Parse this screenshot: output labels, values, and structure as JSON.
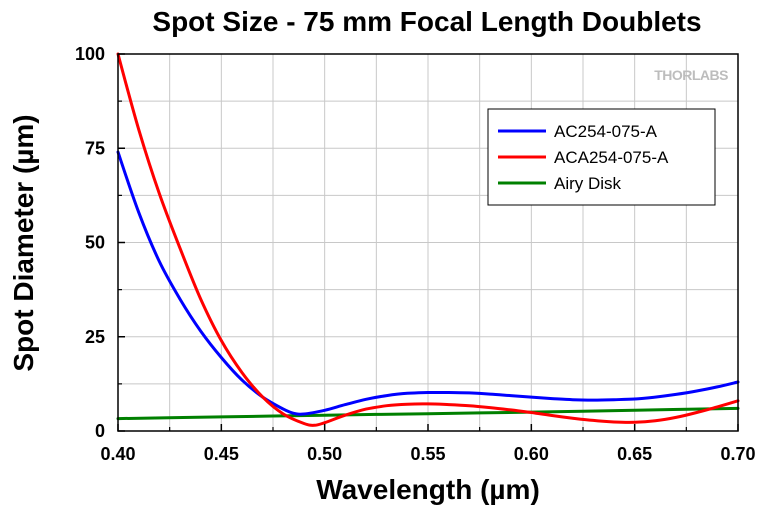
{
  "chart_data": {
    "type": "line",
    "title": "Spot Size - 75 mm Focal Length Doublets",
    "xlabel": "Wavelength (µm)",
    "ylabel": "Spot Diameter (µm)",
    "xlim": [
      0.4,
      0.7
    ],
    "ylim": [
      0,
      100
    ],
    "xticks": [
      "0.40",
      "0.45",
      "0.50",
      "0.55",
      "0.60",
      "0.65",
      "0.70"
    ],
    "yticks": [
      "0",
      "25",
      "50",
      "75",
      "100"
    ],
    "grid": true,
    "legend_position": "top-right",
    "watermark": "THORLABS",
    "series": [
      {
        "name": "AC254-075-A",
        "color": "#0000ff",
        "x": [
          0.4,
          0.41,
          0.42,
          0.43,
          0.44,
          0.45,
          0.46,
          0.47,
          0.48,
          0.485,
          0.49,
          0.5,
          0.51,
          0.52,
          0.53,
          0.54,
          0.55,
          0.56,
          0.57,
          0.58,
          0.59,
          0.6,
          0.61,
          0.62,
          0.63,
          0.64,
          0.65,
          0.66,
          0.67,
          0.68,
          0.69,
          0.7
        ],
        "y": [
          74,
          58,
          45,
          35,
          26.5,
          19.5,
          13.5,
          9,
          5.8,
          4.7,
          4.5,
          5.5,
          7,
          8.4,
          9.4,
          10,
          10.2,
          10.2,
          10.1,
          9.8,
          9.4,
          9,
          8.6,
          8.3,
          8.2,
          8.3,
          8.5,
          9,
          9.7,
          10.6,
          11.7,
          13
        ]
      },
      {
        "name": "ACA254-075-A",
        "color": "#ff0000",
        "x": [
          0.4,
          0.41,
          0.42,
          0.43,
          0.44,
          0.45,
          0.46,
          0.47,
          0.48,
          0.49,
          0.495,
          0.5,
          0.51,
          0.52,
          0.53,
          0.54,
          0.55,
          0.56,
          0.57,
          0.58,
          0.59,
          0.6,
          0.61,
          0.62,
          0.63,
          0.64,
          0.65,
          0.66,
          0.67,
          0.68,
          0.69,
          0.7
        ],
        "y": [
          100,
          80,
          63,
          48.5,
          35,
          24,
          15.5,
          9,
          4.5,
          2,
          1.5,
          2.2,
          4.2,
          5.8,
          6.7,
          7.1,
          7.2,
          7,
          6.7,
          6.2,
          5.6,
          4.9,
          4.1,
          3.4,
          2.8,
          2.4,
          2.3,
          2.7,
          3.6,
          4.9,
          6.4,
          8
        ]
      },
      {
        "name": "Airy Disk",
        "color": "#008000",
        "x": [
          0.4,
          0.45,
          0.5,
          0.55,
          0.6,
          0.65,
          0.7
        ],
        "y": [
          3.3,
          3.75,
          4.2,
          4.6,
          5.0,
          5.5,
          6.0
        ]
      }
    ]
  }
}
